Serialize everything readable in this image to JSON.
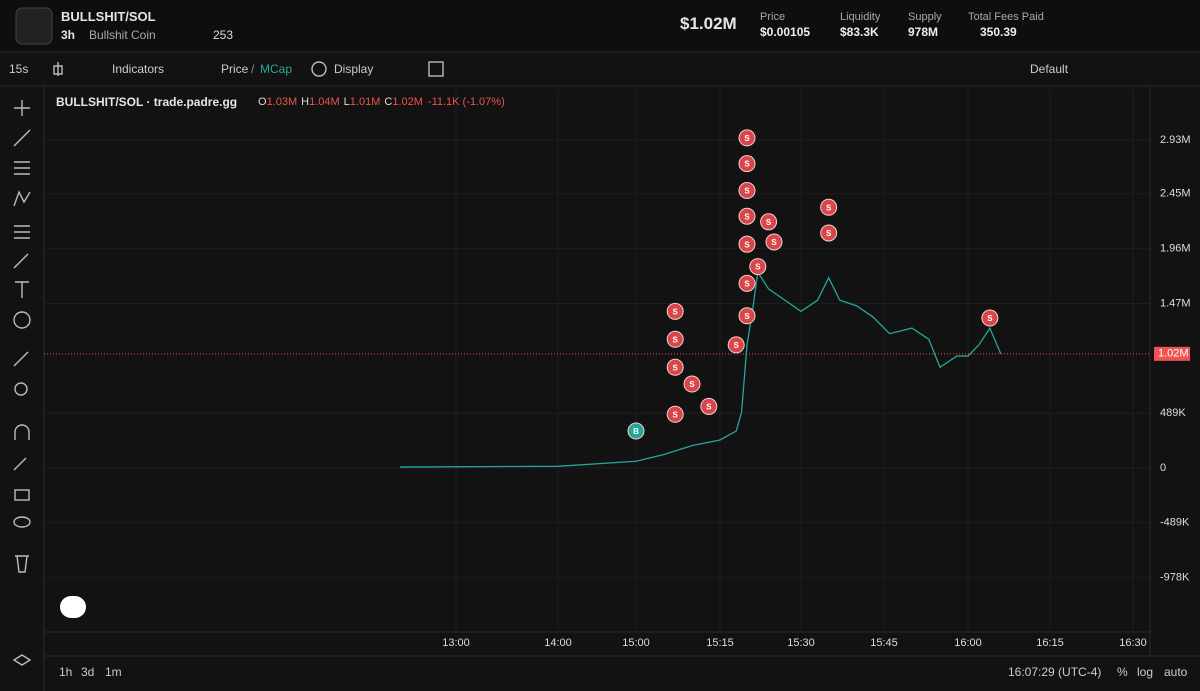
{
  "header": {
    "symbol": "BULLSHIT/SOL",
    "age": "3h",
    "name": "Bullshit Coin",
    "watchers": "253",
    "market_cap": "$1.02M",
    "stats": [
      {
        "label": "Price",
        "value": "$0.00105"
      },
      {
        "label": "Liquidity",
        "value": "$83.3K"
      },
      {
        "label": "Supply",
        "value": "978M"
      },
      {
        "label": "Total Fees Paid",
        "value": "350.39"
      }
    ]
  },
  "toolbar": {
    "interval": "15s",
    "indicators": "Indicators",
    "price": "Price",
    "separator": "/",
    "mcap": "MCap",
    "display": "Display",
    "layout": "Default"
  },
  "chart_data": {
    "type": "line",
    "title": "BULLSHIT/SOL · trade.padre.gg",
    "ohlc": [
      {
        "key": "O",
        "value": "1.03M"
      },
      {
        "key": "H",
        "value": "1.04M"
      },
      {
        "key": "L",
        "value": "1.01M"
      },
      {
        "key": "C",
        "value": "1.02M"
      }
    ],
    "change": "-11.1K (-1.07%)",
    "x": [
      "12:27",
      "14:00",
      "15:00",
      "15:05",
      "15:10",
      "15:15",
      "15:18",
      "15:19",
      "15:20",
      "15:21",
      "15:22",
      "15:24",
      "15:27",
      "15:30",
      "15:33",
      "15:35",
      "15:37",
      "15:40",
      "15:43",
      "15:46",
      "15:50",
      "15:53",
      "15:55",
      "15:58",
      "16:00",
      "16:02",
      "16:04",
      "16:06"
    ],
    "series": [
      {
        "color": "#26a69a",
        "values": [
          8000,
          15000,
          60000,
          120000,
          200000,
          250000,
          330000,
          500000,
          1100000,
          1400000,
          1750000,
          1600000,
          1500000,
          1400000,
          1500000,
          1700000,
          1500000,
          1450000,
          1350000,
          1200000,
          1250000,
          1150000,
          900000,
          1000000,
          1000000,
          1100000,
          1250000,
          1020000
        ]
      }
    ],
    "markers": [
      {
        "label": "B",
        "x": "15:00",
        "value": 330000
      },
      {
        "label": "S",
        "x": "15:07",
        "value": 1400000
      },
      {
        "label": "S",
        "x": "15:07",
        "value": 1150000
      },
      {
        "label": "S",
        "x": "15:07",
        "value": 900000
      },
      {
        "label": "S",
        "x": "15:07",
        "value": 480000
      },
      {
        "label": "S",
        "x": "15:10",
        "value": 750000
      },
      {
        "label": "S",
        "x": "15:13",
        "value": 550000
      },
      {
        "label": "S",
        "x": "15:18",
        "value": 1100000
      },
      {
        "label": "S",
        "x": "15:20",
        "value": 2950000
      },
      {
        "label": "S",
        "x": "15:20",
        "value": 2720000
      },
      {
        "label": "S",
        "x": "15:20",
        "value": 2480000
      },
      {
        "label": "S",
        "x": "15:20",
        "value": 2250000
      },
      {
        "label": "S",
        "x": "15:20",
        "value": 2000000
      },
      {
        "label": "S",
        "x": "15:20",
        "value": 1650000
      },
      {
        "label": "S",
        "x": "15:20",
        "value": 1360000
      },
      {
        "label": "S",
        "x": "15:22",
        "value": 1800000
      },
      {
        "label": "S",
        "x": "15:24",
        "value": 2200000
      },
      {
        "label": "S",
        "x": "15:25",
        "value": 2020000
      },
      {
        "label": "S",
        "x": "15:35",
        "value": 2330000
      },
      {
        "label": "S",
        "x": "15:35",
        "value": 2100000
      },
      {
        "label": "S",
        "x": "16:04",
        "value": 1340000
      }
    ],
    "last_price": {
      "value": 1020000,
      "label": "1.02M"
    },
    "ylim": [
      -1466000,
      3378000
    ],
    "yticks": [
      {
        "value": -978000,
        "label": "-978K"
      },
      {
        "value": -489000,
        "label": "-489K"
      },
      0,
      {
        "value": 489000,
        "label": "489K"
      },
      {
        "value": 1470000,
        "label": "1.47M"
      },
      {
        "value": 1960000,
        "label": "1.96M"
      },
      {
        "value": 2450000,
        "label": "2.45M"
      },
      {
        "value": 2930000,
        "label": "2.93M"
      }
    ],
    "xticks": [
      "13:00",
      "14:00",
      "15:00",
      "15:15",
      "15:30",
      "15:45",
      "16:00",
      "16:15",
      "16:30"
    ],
    "grid": true
  },
  "footer": {
    "ranges": [
      "1h",
      "3d",
      "1m"
    ],
    "clock": "16:07:29 (UTC-4)",
    "options": [
      "%",
      "log",
      "auto"
    ]
  }
}
